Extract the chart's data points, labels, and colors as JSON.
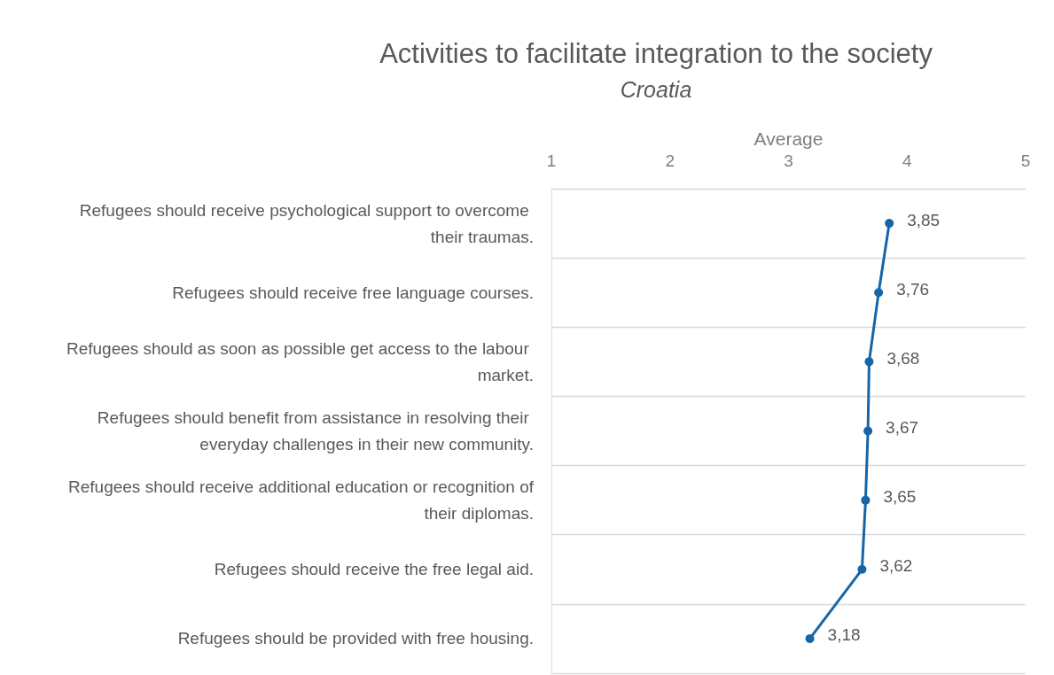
{
  "chart_data": {
    "type": "line",
    "title": "Activities to facilitate integration to the society",
    "subtitle": "Croatia",
    "xlabel": "Average",
    "orientation": "horizontal",
    "categories": [
      "Refugees should receive psychological support to overcome their traumas.",
      "Refugees should receive free language courses.",
      "Refugees should as soon as possible get access to the labour market.",
      "Refugees should benefit from assistance in resolving their everyday challenges in their new community.",
      "Refugees should receive additional education or recognition of their diplomas.",
      "Refugees should receive the free legal aid.",
      "Refugees should be provided with free housing."
    ],
    "series": [
      {
        "color": "#1565a8",
        "values": [
          3.85,
          3.76,
          3.68,
          3.67,
          3.65,
          3.62,
          3.18
        ],
        "value_labels": [
          "3,85",
          "3,76",
          "3,68",
          "3,67",
          "3,65",
          "3,62",
          "3,18"
        ]
      }
    ],
    "xlim": [
      1,
      5
    ],
    "xticks": [
      1,
      2,
      3,
      4,
      5
    ],
    "grid": "y",
    "marker": "circle",
    "line_style": "solid"
  }
}
